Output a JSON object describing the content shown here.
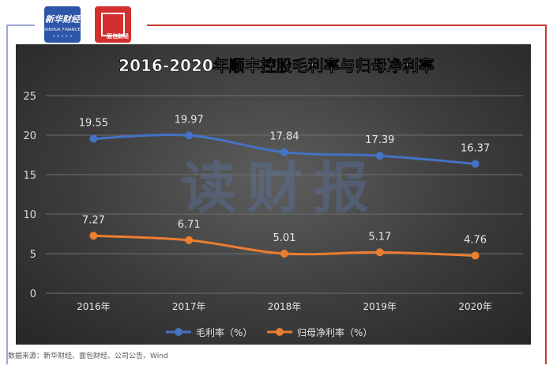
{
  "logos": {
    "logo1_text": "新华财经",
    "logo1_sub": "XINHUA FINANCE",
    "logo2_text": "面包财经"
  },
  "watermark": "读财报",
  "source": "数据来源：新华财经、面包财经、公司公告、Wind",
  "chart_data": {
    "type": "line",
    "title": "2016-2020年顺丰控股毛利率与归母净利率",
    "categories": [
      "2016年",
      "2017年",
      "2018年",
      "2019年",
      "2020年"
    ],
    "ylim": [
      0,
      25
    ],
    "yticks": [
      0,
      5,
      10,
      15,
      20,
      25
    ],
    "grid": true,
    "legend": "bottom",
    "series": [
      {
        "name": "毛利率（%）",
        "values": [
          19.55,
          19.97,
          17.84,
          17.39,
          16.37
        ],
        "labels": [
          "19.55",
          "19.97",
          "17.84",
          "17.39",
          "16.37"
        ],
        "color": "#4472c4"
      },
      {
        "name": "归母净利率（%）",
        "values": [
          7.27,
          6.71,
          5.01,
          5.17,
          4.76
        ],
        "labels": [
          "7.27",
          "6.71",
          "5.01",
          "5.17",
          "4.76"
        ],
        "color": "#ed7d31"
      }
    ]
  }
}
